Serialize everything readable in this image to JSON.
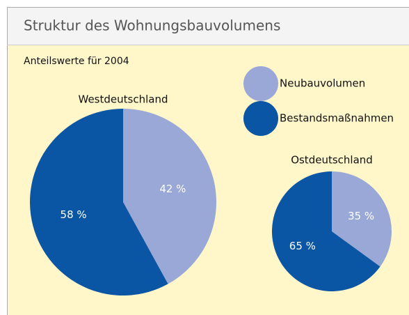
{
  "title": "Struktur des Wohnungsbauvolumens",
  "subtitle": "Anteilswerte für 2004",
  "chart_data": [
    {
      "type": "pie",
      "title": "Westdeutschland",
      "categories": [
        "Neubauvolumen",
        "Bestandsmaßnahmen"
      ],
      "values": [
        42,
        58
      ],
      "value_labels": [
        "42 %",
        "58 %"
      ],
      "colors": [
        "#99a8d6",
        "#0b55a5"
      ]
    },
    {
      "type": "pie",
      "title": "Ostdeutschland",
      "categories": [
        "Neubauvolumen",
        "Bestandsmaßnahmen"
      ],
      "values": [
        35,
        65
      ],
      "value_labels": [
        "35 %",
        "65 %"
      ],
      "colors": [
        "#99a8d6",
        "#0b55a5"
      ]
    }
  ]
}
